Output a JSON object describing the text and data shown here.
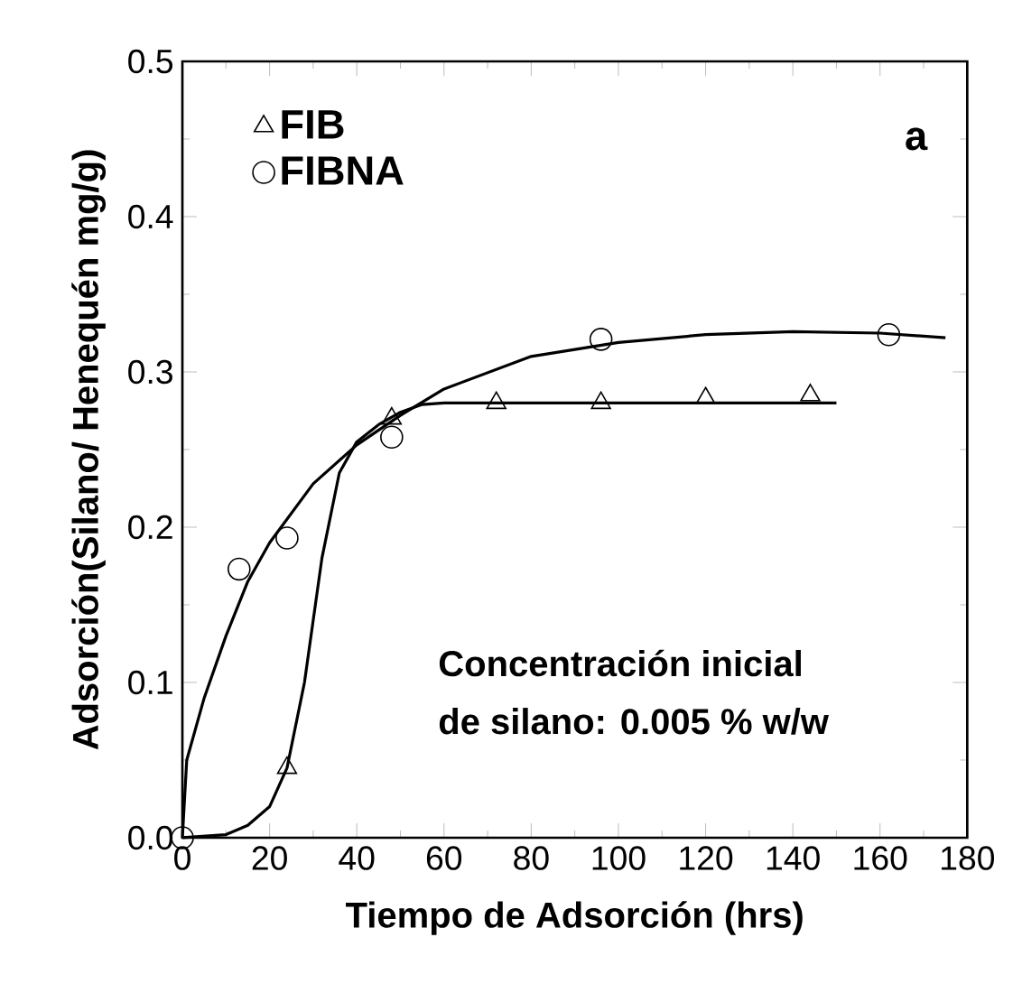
{
  "chart_data": {
    "type": "scatter",
    "xlabel": "Tiempo de Adsorción (hrs)",
    "ylabel": "Adsorción(Silano/ Henequén mg/g)",
    "xlim": [
      0,
      180
    ],
    "xticks": [
      0,
      20,
      40,
      60,
      80,
      100,
      120,
      140,
      160,
      180
    ],
    "ylim": [
      0,
      0.5
    ],
    "yticks": [
      {
        "value": 0,
        "label": "0.0"
      },
      0.1,
      0.2,
      0.3,
      0.4,
      0.5
    ],
    "legend": "top left",
    "grid": false,
    "annotations": [
      "a",
      "Concentración inicial",
      "de silano: 0.005 % w/w"
    ],
    "series": [
      {
        "name": "FIB",
        "marker": "triangle",
        "color": "#000000",
        "x": [
          24,
          48,
          72,
          96,
          120,
          144
        ],
        "values": [
          0.045,
          0.27,
          0.28,
          0.28,
          0.283,
          0.285
        ]
      },
      {
        "name": "FIBNA",
        "marker": "circle",
        "color": "#000000",
        "x": [
          0,
          13,
          24,
          48,
          96,
          162
        ],
        "values": [
          0,
          0.173,
          0.193,
          0.258,
          0.321,
          0.324
        ]
      },
      {
        "type": "line",
        "marker": "none",
        "line_style": "solid",
        "color": "#000000",
        "x": [
          0,
          10,
          15,
          20,
          24,
          28,
          32,
          36,
          40,
          45,
          50,
          55,
          60,
          80,
          150
        ],
        "values": [
          0,
          0.002,
          0.008,
          0.02,
          0.045,
          0.1,
          0.18,
          0.235,
          0.255,
          0.266,
          0.274,
          0.279,
          0.28,
          0.28,
          0.28
        ]
      },
      {
        "type": "line",
        "marker": "none",
        "line_style": "solid",
        "color": "#000000",
        "x": [
          0,
          1,
          5,
          10,
          15,
          20,
          30,
          40,
          50,
          60,
          80,
          100,
          120,
          140,
          160,
          175
        ],
        "values": [
          0,
          0.05,
          0.09,
          0.13,
          0.165,
          0.19,
          0.228,
          0.253,
          0.272,
          0.289,
          0.31,
          0.319,
          0.324,
          0.326,
          0.325,
          0.322
        ]
      }
    ]
  }
}
